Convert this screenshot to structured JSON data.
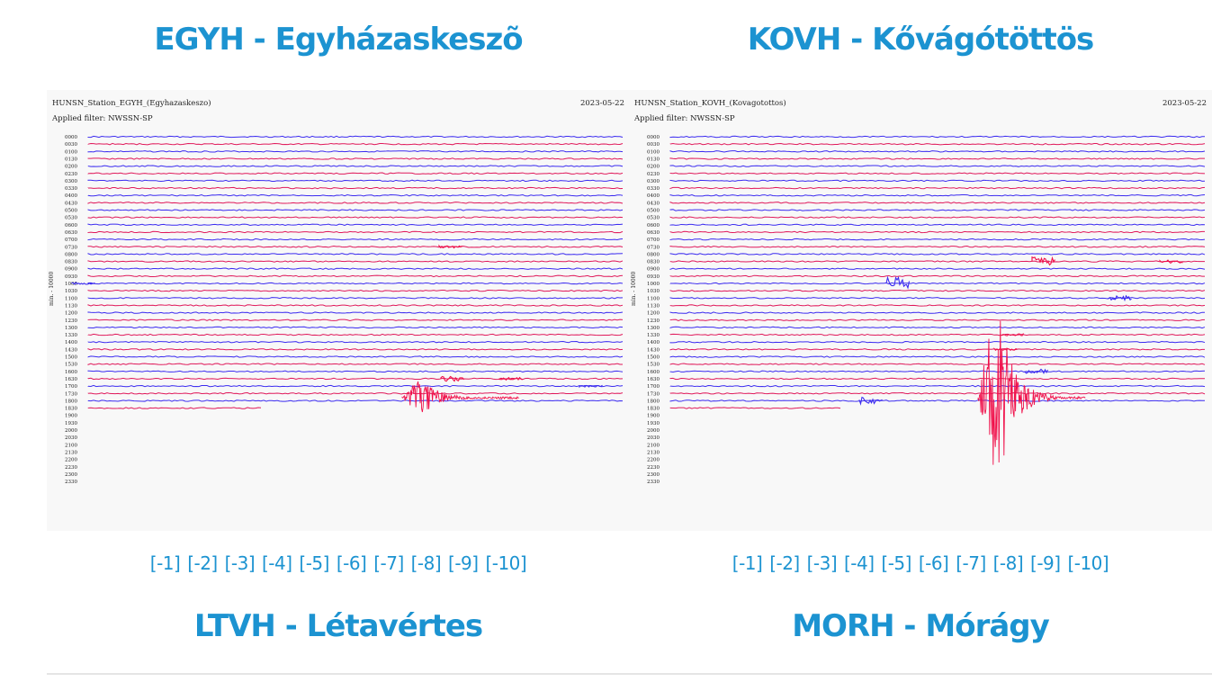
{
  "stations": [
    {
      "title": "EGYH - Egyházaskeszõ",
      "plot": {
        "header_name": "HUNSN_Station_EGYH_(Egyhazaskeszo)",
        "header_date": "2023-05-22",
        "filter_text": "Applied filter: NWSSN-SP",
        "ylabel": "min. - 10000",
        "hours": [
          "00:00",
          "00:30",
          "01:00",
          "01:30",
          "02:00",
          "02:30",
          "03:00",
          "03:30",
          "04:00",
          "04:30",
          "05:00",
          "05:30",
          "06:00",
          "06:30",
          "07:00",
          "07:30",
          "08:00",
          "08:30",
          "09:00",
          "09:30",
          "10:00",
          "10:30",
          "11:00",
          "11:30",
          "12:00",
          "12:30",
          "13:00",
          "13:30",
          "14:00",
          "14:30",
          "15:00",
          "15:30",
          "16:00",
          "16:30",
          "17:00",
          "17:30",
          "18:00",
          "18:30",
          "19:00",
          "19:30",
          "20:00",
          "20:30",
          "21:00",
          "21:30",
          "22:00",
          "22:30",
          "23:00",
          "23:30"
        ]
      },
      "links": [
        "[-1]",
        "[-2]",
        "[-3]",
        "[-4]",
        "[-5]",
        "[-6]",
        "[-7]",
        "[-8]",
        "[-9]",
        "[-10]"
      ]
    },
    {
      "title": "KOVH - Kővágótöttös",
      "plot": {
        "header_name": "HUNSN_Station_KOVH_(Kovagotottos)",
        "header_date": "2023-05-22",
        "filter_text": "Applied filter: NWSSN-SP",
        "ylabel": "min. - 10000",
        "hours": [
          "00:00",
          "00:30",
          "01:00",
          "01:30",
          "02:00",
          "02:30",
          "03:00",
          "03:30",
          "04:00",
          "04:30",
          "05:00",
          "05:30",
          "06:00",
          "06:30",
          "07:00",
          "07:30",
          "08:00",
          "08:30",
          "09:00",
          "09:30",
          "10:00",
          "10:30",
          "11:00",
          "11:30",
          "12:00",
          "12:30",
          "13:00",
          "13:30",
          "14:00",
          "14:30",
          "15:00",
          "15:30",
          "16:00",
          "16:30",
          "17:00",
          "17:30",
          "18:00",
          "18:30",
          "19:00",
          "19:30",
          "20:00",
          "20:30",
          "21:00",
          "21:30",
          "22:00",
          "22:30",
          "23:00",
          "23:30"
        ]
      },
      "links": [
        "[-1]",
        "[-2]",
        "[-3]",
        "[-4]",
        "[-5]",
        "[-6]",
        "[-7]",
        "[-8]",
        "[-9]",
        "[-10]"
      ]
    }
  ],
  "next_titles": [
    "LTVH - Létavértes",
    "MORH - Mórágy"
  ],
  "colors": {
    "title": "#1c93d1",
    "trace_a": "#3b2bf0",
    "trace_b": "#e0185a",
    "event": "#f0104a"
  }
}
